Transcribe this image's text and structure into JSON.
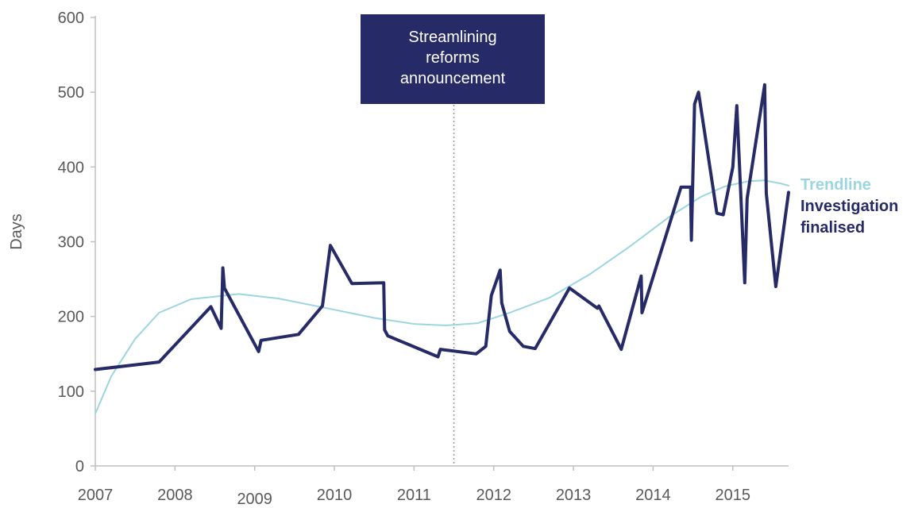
{
  "chart_data": {
    "type": "line",
    "ylabel": "Days",
    "xlim": [
      2007.0,
      2015.7
    ],
    "ylim": [
      0,
      600
    ],
    "y_ticks": [
      0,
      100,
      200,
      300,
      400,
      500,
      600
    ],
    "x_ticks": [
      "2007",
      "2008",
      "2009",
      "2010",
      "2011",
      "2012",
      "2013",
      "2014",
      "2015"
    ],
    "grid": false,
    "legend_placement": "right",
    "colors": {
      "investigation": "#262a66",
      "trendline": "#9bd6e0",
      "annotation_box": "#262a66",
      "axis": "#bfbfbf",
      "reference_line": "#9a9a9a",
      "text": "#595959"
    },
    "annotation": {
      "lines": [
        "Streamlining",
        "reforms",
        "announcement"
      ],
      "x": 2011.5
    },
    "series": [
      {
        "name": "Investigation finalised",
        "points": [
          [
            2007.0,
            129
          ],
          [
            2007.8,
            139
          ],
          [
            2008.45,
            213
          ],
          [
            2008.58,
            184
          ],
          [
            2008.6,
            265
          ],
          [
            2008.62,
            238
          ],
          [
            2009.05,
            153
          ],
          [
            2009.08,
            168
          ],
          [
            2009.55,
            176
          ],
          [
            2009.85,
            214
          ],
          [
            2009.95,
            295
          ],
          [
            2010.22,
            244
          ],
          [
            2010.62,
            245
          ],
          [
            2010.63,
            182
          ],
          [
            2010.67,
            174
          ],
          [
            2011.3,
            146
          ],
          [
            2011.33,
            156
          ],
          [
            2011.78,
            150
          ],
          [
            2011.9,
            160
          ],
          [
            2011.97,
            228
          ],
          [
            2012.08,
            262
          ],
          [
            2012.1,
            218
          ],
          [
            2012.2,
            180
          ],
          [
            2012.37,
            160
          ],
          [
            2012.52,
            157
          ],
          [
            2012.95,
            238
          ],
          [
            2013.3,
            211
          ],
          [
            2013.32,
            214
          ],
          [
            2013.6,
            156
          ],
          [
            2013.85,
            254
          ],
          [
            2013.86,
            205
          ],
          [
            2014.35,
            373
          ],
          [
            2014.47,
            373
          ],
          [
            2014.48,
            302
          ],
          [
            2014.52,
            484
          ],
          [
            2014.57,
            500
          ],
          [
            2014.8,
            338
          ],
          [
            2014.88,
            336
          ],
          [
            2015.0,
            400
          ],
          [
            2015.05,
            482
          ],
          [
            2015.15,
            245
          ],
          [
            2015.18,
            358
          ],
          [
            2015.4,
            510
          ],
          [
            2015.42,
            365
          ],
          [
            2015.54,
            240
          ],
          [
            2015.7,
            366
          ]
        ]
      },
      {
        "name": "Trendline",
        "points": [
          [
            2007.0,
            70
          ],
          [
            2007.2,
            120
          ],
          [
            2007.5,
            170
          ],
          [
            2007.8,
            205
          ],
          [
            2008.2,
            223
          ],
          [
            2008.8,
            230
          ],
          [
            2009.3,
            224
          ],
          [
            2010.0,
            209
          ],
          [
            2010.5,
            198
          ],
          [
            2011.0,
            190
          ],
          [
            2011.4,
            188
          ],
          [
            2011.8,
            191
          ],
          [
            2012.2,
            205
          ],
          [
            2012.7,
            225
          ],
          [
            2013.2,
            256
          ],
          [
            2013.7,
            293
          ],
          [
            2014.2,
            333
          ],
          [
            2014.6,
            360
          ],
          [
            2014.9,
            374
          ],
          [
            2015.2,
            381
          ],
          [
            2015.4,
            382
          ],
          [
            2015.6,
            378
          ],
          [
            2015.7,
            375
          ]
        ]
      }
    ],
    "legend": [
      {
        "lines": [
          "Trendline"
        ],
        "color": "#9bd6e0"
      },
      {
        "lines": [
          "Investigation",
          "finalised"
        ],
        "color": "#262a66"
      }
    ]
  }
}
